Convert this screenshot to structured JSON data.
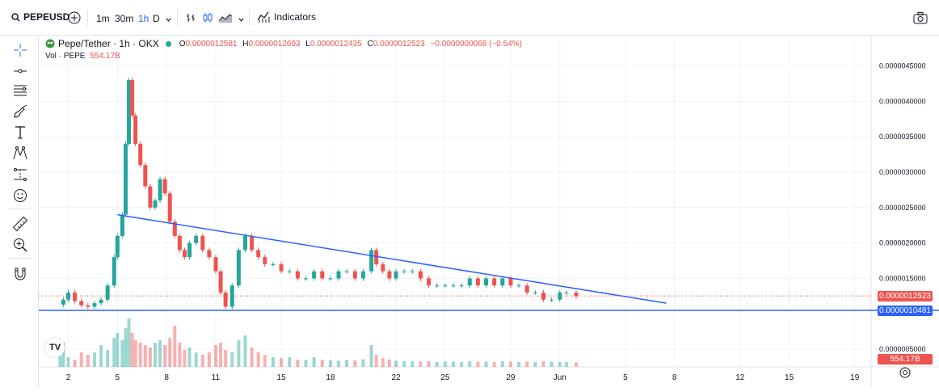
{
  "toolbar": {
    "symbol": "PEPEUSD",
    "intervals": [
      "1m",
      "30m",
      "1h",
      "D"
    ],
    "active_interval": "1h",
    "indicators_label": "Indicators"
  },
  "legend": {
    "title": "Pepe/Tether · 1h · OKX",
    "open_label": "O",
    "open": "0.0000012581",
    "high_label": "H",
    "high": "0.0000012693",
    "low_label": "L",
    "low": "0.0000012435",
    "close_label": "C",
    "close": "0.0000012523",
    "change": "−0.0000000068 (−0.54%)",
    "volume_label": "Vol · PEPE",
    "volume": "554.17B"
  },
  "price_tags": {
    "last_price": "0.0000012523",
    "horizontal_line": "0.0000010481",
    "volume": "554.17B"
  },
  "colors": {
    "up": "#26a69a",
    "down": "#ef5350",
    "trendline": "#2962ff",
    "accent": "#2962ff"
  },
  "icons": [
    "search-icon",
    "plus-circle-icon",
    "bar-chart-icon",
    "candles-icon",
    "area-chart-icon",
    "chevron-down-icon",
    "indicators-icon",
    "camera-icon",
    "crosshair-icon",
    "trend-line-icon",
    "fib-icon",
    "brush-icon",
    "text-icon",
    "pattern-icon",
    "measure-icon",
    "emoji-icon",
    "ruler-icon",
    "zoom-in-icon",
    "magnet-icon",
    "settings-icon"
  ],
  "chart_data": {
    "type": "line",
    "title": "Pepe/Tether · 1h · OKX",
    "y_tick_labels": [
      "0.0000045000",
      "0.0000040000",
      "0.0000035000",
      "0.0000030000",
      "0.0000025000",
      "0.0000020000",
      "0.0000015000",
      "0.0000005000"
    ],
    "y_ticks": [
      4.5e-06,
      4e-06,
      3.5e-06,
      3e-06,
      2.5e-06,
      2e-06,
      1.5e-06,
      5e-07
    ],
    "x_tick_labels": [
      "2",
      "5",
      "8",
      "11",
      "15",
      "18",
      "22",
      "25",
      "29",
      "Jun",
      "5",
      "8",
      "12",
      "15",
      "19"
    ],
    "x_ticks_days": [
      2,
      5,
      8,
      11,
      15,
      18,
      22,
      25,
      29,
      32,
      36,
      39,
      43,
      46,
      50
    ],
    "ylim": [
      2.5e-07,
      4.7e-06
    ],
    "xlim_days": [
      0.2,
      51
    ],
    "series": [
      {
        "x_days": [
          1.5,
          1.7,
          2.0,
          2.4,
          2.8,
          3.2,
          3.6,
          4.0,
          4.4,
          4.8,
          5.0,
          5.3,
          5.5,
          5.7,
          5.9,
          6.1,
          6.4,
          6.7,
          7.0,
          7.3,
          7.6,
          7.9,
          8.2,
          8.5,
          8.8,
          9.1,
          9.4,
          9.8,
          10.2,
          10.6,
          11.0,
          11.3,
          11.6,
          12.0,
          12.4,
          12.8,
          13.2,
          13.6,
          14.0,
          14.5,
          15.0,
          15.5,
          16.0,
          16.5,
          17.0,
          17.5,
          18.0,
          18.5,
          19.0,
          19.5,
          20.0,
          20.5,
          20.8,
          21.2,
          21.6,
          22.0,
          22.5,
          23.0,
          23.5,
          24.0,
          24.5,
          25.0,
          25.5,
          26.0,
          26.5,
          27.0,
          27.5,
          28.0,
          28.5,
          29.0,
          29.5,
          30.0,
          30.5,
          31.0,
          31.5,
          32.0,
          32.4,
          33.0
        ],
        "values": [
          1.13e-06,
          1.2e-06,
          1.3e-06,
          1.18e-06,
          1.12e-06,
          1.1e-06,
          1.15e-06,
          1.2e-06,
          1.4e-06,
          1.8e-06,
          2.1e-06,
          2.4e-06,
          3.4e-06,
          4.3e-06,
          3.8e-06,
          3.4e-06,
          3.1e-06,
          2.8e-06,
          2.5e-06,
          2.6e-06,
          2.9e-06,
          2.7e-06,
          2.3e-06,
          2.1e-06,
          1.9e-06,
          1.8e-06,
          2e-06,
          2.1e-06,
          1.9e-06,
          1.8e-06,
          1.6e-06,
          1.3e-06,
          1.1e-06,
          1.4e-06,
          1.9e-06,
          2.1e-06,
          1.9e-06,
          1.8e-06,
          1.7e-06,
          1.7e-06,
          1.6e-06,
          1.6e-06,
          1.5e-06,
          1.5e-06,
          1.6e-06,
          1.5e-06,
          1.5e-06,
          1.6e-06,
          1.6e-06,
          1.5e-06,
          1.6e-06,
          1.9e-06,
          1.7e-06,
          1.6e-06,
          1.5e-06,
          1.6e-06,
          1.6e-06,
          1.6e-06,
          1.5e-06,
          1.4e-06,
          1.4e-06,
          1.4e-06,
          1.4e-06,
          1.4e-06,
          1.5e-06,
          1.4e-06,
          1.5e-06,
          1.4e-06,
          1.5e-06,
          1.4e-06,
          1.4e-06,
          1.3e-06,
          1.3e-06,
          1.2e-06,
          1.2e-06,
          1.3e-06,
          1.3e-06,
          1.25e-06
        ]
      }
    ],
    "volume_values": [
      0.22,
      0.5,
      0.2,
      0.15,
      0.3,
      0.25,
      0.3,
      0.45,
      0.35,
      0.6,
      0.7,
      0.55,
      0.8,
      1.0,
      0.7,
      0.55,
      0.5,
      0.45,
      0.4,
      0.5,
      0.55,
      0.45,
      0.6,
      0.85,
      0.5,
      0.35,
      0.4,
      0.3,
      0.25,
      0.3,
      0.45,
      0.5,
      0.35,
      0.3,
      0.55,
      0.65,
      0.4,
      0.3,
      0.25,
      0.2,
      0.18,
      0.2,
      0.15,
      0.15,
      0.2,
      0.15,
      0.14,
      0.13,
      0.15,
      0.14,
      0.16,
      0.45,
      0.25,
      0.18,
      0.15,
      0.13,
      0.12,
      0.12,
      0.11,
      0.12,
      0.1,
      0.11,
      0.11,
      0.1,
      0.12,
      0.1,
      0.11,
      0.1,
      0.12,
      0.11,
      0.1,
      0.11,
      0.1,
      0.12,
      0.11,
      0.1,
      0.1,
      0.09
    ],
    "annotations": [
      {
        "type": "trendline",
        "from": {
          "day": 5.0,
          "price": 2.4e-06
        },
        "to": {
          "day": 38.5,
          "price": 1.15e-06
        }
      },
      {
        "type": "horizontal_line",
        "price": 1.0481e-06
      },
      {
        "type": "price_line",
        "price": 1.2523e-06
      }
    ],
    "grid": true
  }
}
